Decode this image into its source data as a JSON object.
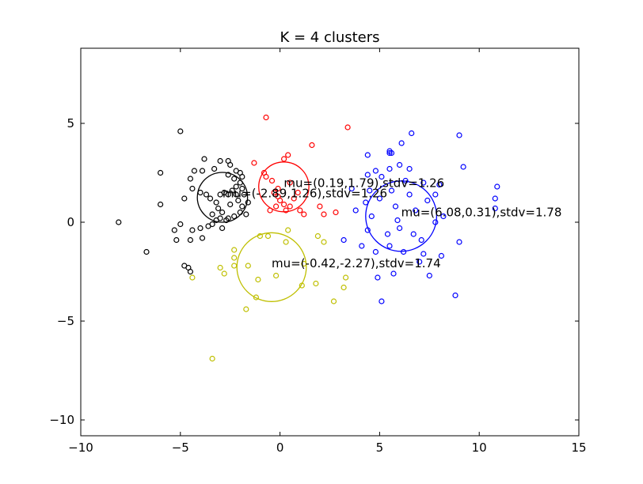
{
  "chart_data": {
    "type": "scatter",
    "title": "K = 4 clusters",
    "xlabel": "",
    "ylabel": "",
    "xlim": [
      -10,
      15
    ],
    "ylim": [
      -10.8,
      8.8
    ],
    "x_ticks": [
      -10,
      -5,
      0,
      5,
      10,
      15
    ],
    "x_tick_labels": [
      "−10",
      "−5",
      "0",
      "5",
      "10",
      "15"
    ],
    "y_ticks": [
      -10,
      -5,
      0,
      5
    ],
    "y_tick_labels": [
      "−10",
      "−5",
      "0",
      "5"
    ],
    "grid": false,
    "legend": "none",
    "series": [
      {
        "color": "#ff0000",
        "center": [
          0.19,
          1.79
        ],
        "stdv": 1.26,
        "annotation": "mu=(0.19,1.79),stdv=1.26",
        "points": [
          [
            -0.7,
            5.3
          ],
          [
            3.4,
            4.8
          ],
          [
            1.6,
            3.9
          ],
          [
            0.4,
            3.4
          ],
          [
            0.2,
            3.2
          ],
          [
            -1.3,
            3.0
          ],
          [
            -0.8,
            2.5
          ],
          [
            -0.7,
            2.3
          ],
          [
            -0.4,
            2.1
          ],
          [
            0.5,
            2.0
          ],
          [
            -0.1,
            1.7
          ],
          [
            -0.3,
            1.5
          ],
          [
            0.0,
            1.1
          ],
          [
            0.2,
            0.9
          ],
          [
            0.5,
            0.8
          ],
          [
            0.3,
            0.6
          ],
          [
            -0.5,
            0.6
          ],
          [
            0.9,
            1.5
          ],
          [
            1.0,
            0.6
          ],
          [
            1.2,
            0.4
          ],
          [
            2.0,
            0.8
          ],
          [
            2.2,
            0.4
          ],
          [
            2.8,
            0.5
          ],
          [
            -0.2,
            0.8
          ],
          [
            0.7,
            1.2
          ],
          [
            -0.1,
            1.3
          ]
        ]
      },
      {
        "color": "#000000",
        "center": [
          -2.89,
          1.26
        ],
        "stdv": 1.26,
        "annotation": "mu=(-2.89,1.26),stdv=1.26",
        "points": [
          [
            -5.0,
            4.6
          ],
          [
            -3.8,
            3.2
          ],
          [
            -3.0,
            3.1
          ],
          [
            -2.6,
            3.1
          ],
          [
            -2.5,
            2.9
          ],
          [
            -3.3,
            2.7
          ],
          [
            -3.9,
            2.6
          ],
          [
            -4.3,
            2.6
          ],
          [
            -4.5,
            2.2
          ],
          [
            -6.0,
            2.5
          ],
          [
            -2.2,
            2.6
          ],
          [
            -2.0,
            2.5
          ],
          [
            -1.9,
            2.3
          ],
          [
            -2.0,
            2.0
          ],
          [
            -2.2,
            1.8
          ],
          [
            -2.4,
            1.6
          ],
          [
            -2.6,
            1.4
          ],
          [
            -2.8,
            1.5
          ],
          [
            -3.0,
            1.4
          ],
          [
            -3.2,
            1.0
          ],
          [
            -3.5,
            1.2
          ],
          [
            -3.7,
            1.4
          ],
          [
            -4.0,
            1.5
          ],
          [
            -4.4,
            1.7
          ],
          [
            -4.8,
            1.2
          ],
          [
            -6.0,
            0.9
          ],
          [
            -3.1,
            0.7
          ],
          [
            -2.9,
            0.5
          ],
          [
            -2.6,
            0.2
          ],
          [
            -2.3,
            0.3
          ],
          [
            -2.0,
            0.5
          ],
          [
            -1.9,
            0.8
          ],
          [
            -2.1,
            1.1
          ],
          [
            -1.8,
            1.4
          ],
          [
            -1.9,
            1.7
          ],
          [
            -2.3,
            2.2
          ],
          [
            -2.6,
            2.4
          ],
          [
            -3.4,
            0.4
          ],
          [
            -3.2,
            0.1
          ],
          [
            -2.9,
            -0.3
          ],
          [
            -3.6,
            -0.2
          ],
          [
            -4.0,
            -0.3
          ],
          [
            -4.4,
            -0.4
          ],
          [
            -5.0,
            -0.1
          ],
          [
            -5.3,
            -0.4
          ],
          [
            -5.2,
            -0.9
          ],
          [
            -4.5,
            -0.9
          ],
          [
            -3.9,
            -0.8
          ],
          [
            -8.1,
            0.0
          ],
          [
            -6.7,
            -1.5
          ],
          [
            -4.8,
            -2.2
          ],
          [
            -4.6,
            -2.3
          ],
          [
            -4.5,
            -2.5
          ],
          [
            -1.6,
            1.0
          ],
          [
            -1.7,
            0.4
          ],
          [
            -2.5,
            0.9
          ],
          [
            -2.7,
            0.1
          ],
          [
            -3.0,
            0.2
          ],
          [
            -3.4,
            -0.1
          ],
          [
            -2.2,
            1.4
          ]
        ]
      },
      {
        "color": "#0000ff",
        "center": [
          6.08,
          0.31
        ],
        "stdv": 1.78,
        "annotation": "mu=(6.08,0.31),stdv=1.78",
        "points": [
          [
            6.6,
            4.5
          ],
          [
            9.0,
            4.4
          ],
          [
            6.1,
            4.0
          ],
          [
            5.5,
            3.6
          ],
          [
            5.5,
            3.5
          ],
          [
            5.6,
            3.5
          ],
          [
            4.4,
            3.4
          ],
          [
            6.0,
            2.9
          ],
          [
            5.5,
            2.7
          ],
          [
            6.5,
            2.7
          ],
          [
            9.2,
            2.8
          ],
          [
            4.8,
            2.6
          ],
          [
            4.4,
            2.4
          ],
          [
            5.1,
            2.3
          ],
          [
            6.3,
            2.1
          ],
          [
            7.2,
            2.0
          ],
          [
            8.0,
            1.9
          ],
          [
            10.9,
            1.8
          ],
          [
            3.6,
            1.7
          ],
          [
            4.5,
            1.6
          ],
          [
            5.6,
            1.6
          ],
          [
            6.5,
            1.4
          ],
          [
            7.8,
            1.4
          ],
          [
            4.3,
            1.0
          ],
          [
            5.0,
            1.2
          ],
          [
            5.8,
            0.8
          ],
          [
            6.8,
            0.6
          ],
          [
            7.4,
            1.1
          ],
          [
            10.8,
            1.2
          ],
          [
            3.8,
            0.6
          ],
          [
            4.6,
            0.3
          ],
          [
            5.9,
            0.1
          ],
          [
            7.8,
            0.0
          ],
          [
            8.2,
            0.3
          ],
          [
            10.8,
            0.7
          ],
          [
            4.4,
            -0.4
          ],
          [
            5.4,
            -0.6
          ],
          [
            6.7,
            -0.6
          ],
          [
            7.1,
            -0.9
          ],
          [
            3.2,
            -0.9
          ],
          [
            4.1,
            -1.2
          ],
          [
            5.5,
            -1.2
          ],
          [
            6.2,
            -1.5
          ],
          [
            7.2,
            -1.6
          ],
          [
            8.1,
            -1.7
          ],
          [
            9.0,
            -1.0
          ],
          [
            4.8,
            -1.5
          ],
          [
            5.7,
            -2.6
          ],
          [
            4.9,
            -2.8
          ],
          [
            7.5,
            -2.7
          ],
          [
            8.8,
            -3.7
          ],
          [
            5.1,
            -4.0
          ],
          [
            7.0,
            -2.0
          ],
          [
            6.0,
            -0.3
          ]
        ]
      },
      {
        "color": "#bfbf00",
        "center": [
          -0.42,
          -2.27
        ],
        "stdv": 1.74,
        "annotation": "mu=(-0.42,-2.27),stdv=1.74",
        "points": [
          [
            -1.0,
            -0.7
          ],
          [
            -0.6,
            -0.7
          ],
          [
            0.3,
            -1.0
          ],
          [
            1.9,
            -0.7
          ],
          [
            2.2,
            -1.0
          ],
          [
            -2.3,
            -1.4
          ],
          [
            -2.3,
            -1.8
          ],
          [
            -2.3,
            -2.2
          ],
          [
            -3.0,
            -2.3
          ],
          [
            -1.6,
            -2.2
          ],
          [
            -2.8,
            -2.6
          ],
          [
            -0.2,
            -2.7
          ],
          [
            1.2,
            -2.1
          ],
          [
            -1.1,
            -2.9
          ],
          [
            -4.4,
            -2.8
          ],
          [
            1.1,
            -3.2
          ],
          [
            3.3,
            -2.8
          ],
          [
            3.2,
            -3.3
          ],
          [
            -1.2,
            -3.8
          ],
          [
            1.8,
            -3.1
          ],
          [
            2.7,
            -4.0
          ],
          [
            -1.7,
            -4.4
          ],
          [
            -3.4,
            -6.9
          ],
          [
            0.4,
            -0.4
          ]
        ]
      }
    ]
  }
}
